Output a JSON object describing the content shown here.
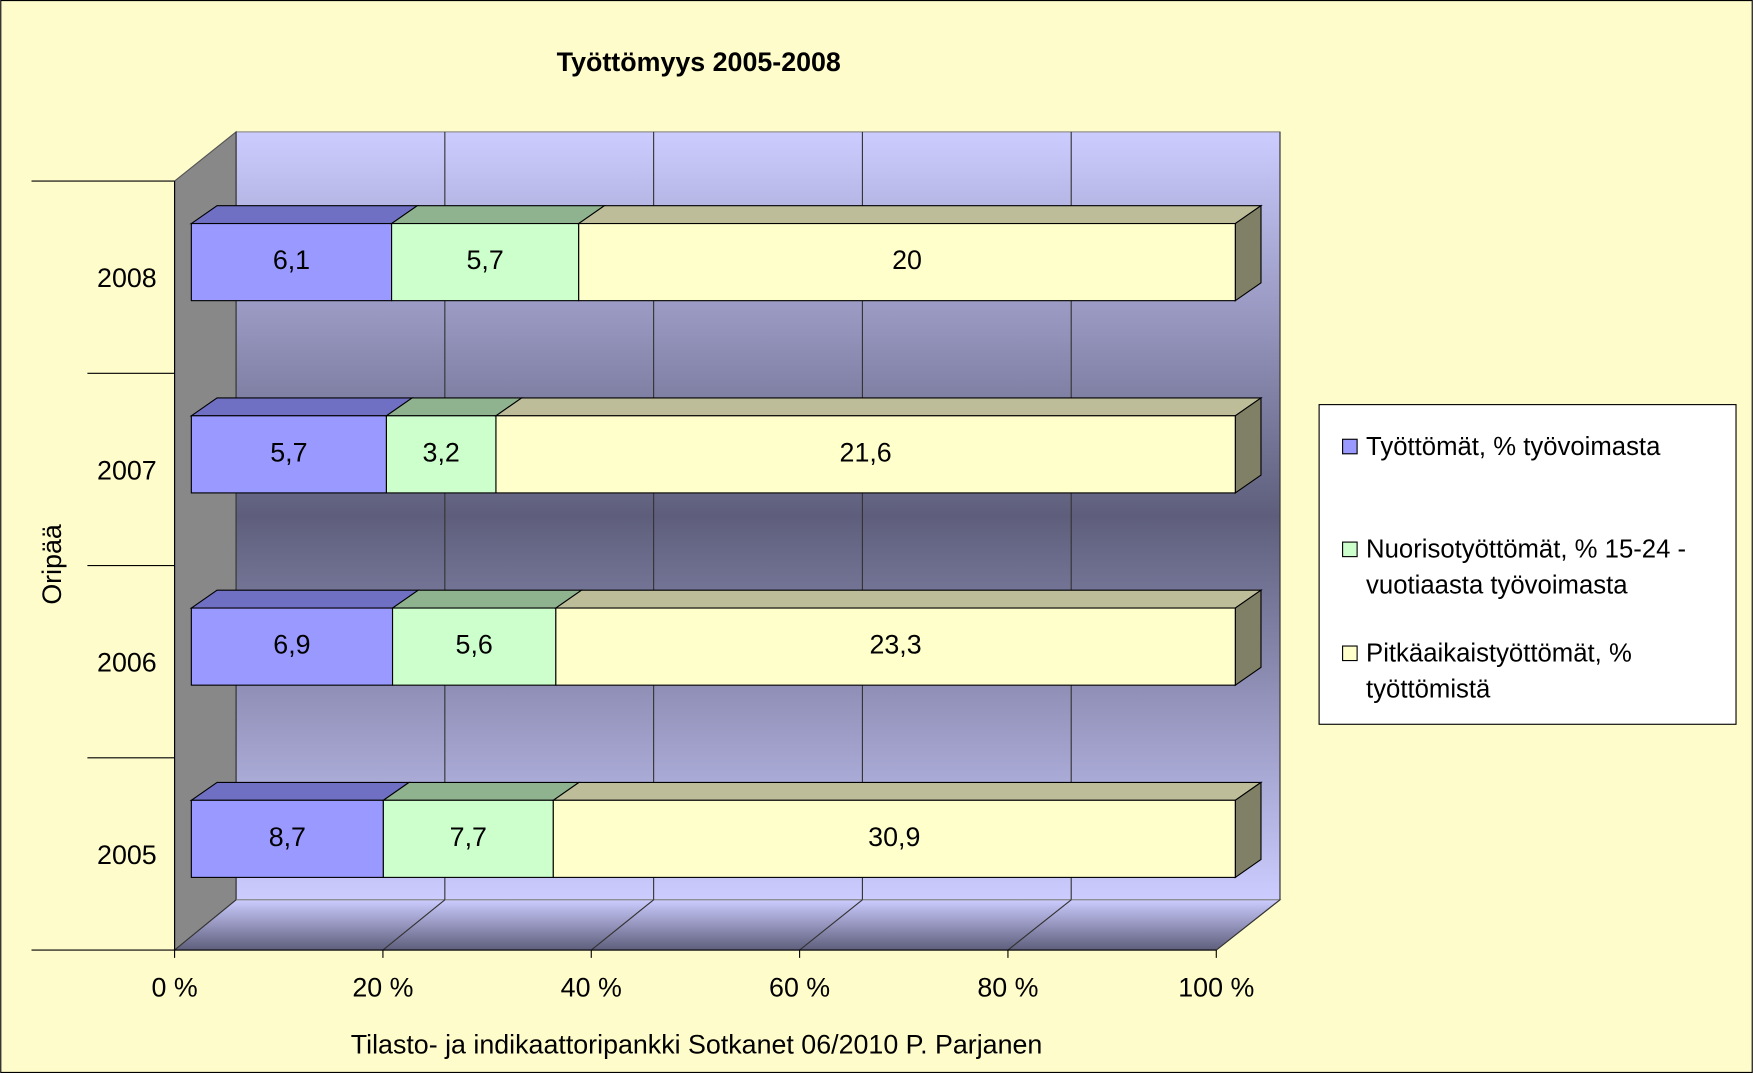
{
  "chart_data": {
    "type": "bar",
    "stacked": "percent",
    "orientation": "horizontal",
    "title": "Työttömyys 2005-2008",
    "y_label": "Oripää",
    "x_label": "Tilasto- ja indikaattoripankki Sotkanet 06/2010 P. Parjanen",
    "categories": [
      "2008",
      "2007",
      "2006",
      "2005"
    ],
    "series": [
      {
        "name": "Työttömät, % työvoimasta",
        "color": "#9999ff",
        "top_color": "#6f6fc4",
        "values": [
          6.1,
          5.7,
          6.9,
          8.7
        ],
        "value_labels": [
          "6,1",
          "5,7",
          "6,9",
          "8,7"
        ]
      },
      {
        "name": "Nuorisotyöttömät, % 15-24 -vuotiaasta työvoimasta",
        "color": "#ccffcc",
        "top_color": "#8fb38f",
        "values": [
          5.7,
          3.2,
          5.6,
          7.7
        ],
        "value_labels": [
          "5,7",
          "3,2",
          "5,6",
          "7,7"
        ]
      },
      {
        "name": "Pitkäaikaistyöttömät, % työttömistä",
        "color": "#ffffcc",
        "top_color": "#bdbd9a",
        "values": [
          20,
          21.6,
          23.3,
          30.9
        ],
        "value_labels": [
          "20",
          "21,6",
          "23,3",
          "30,9"
        ]
      }
    ],
    "xlim": [
      0,
      100
    ],
    "xticks": [
      {
        "value": 0,
        "label": "0 %"
      },
      {
        "value": 20,
        "label": "20 %"
      },
      {
        "value": 40,
        "label": "40 %"
      },
      {
        "value": 60,
        "label": "60 %"
      },
      {
        "value": 80,
        "label": "80 %"
      },
      {
        "value": 100,
        "label": "100 %"
      }
    ],
    "grid": true,
    "legend": "right"
  }
}
